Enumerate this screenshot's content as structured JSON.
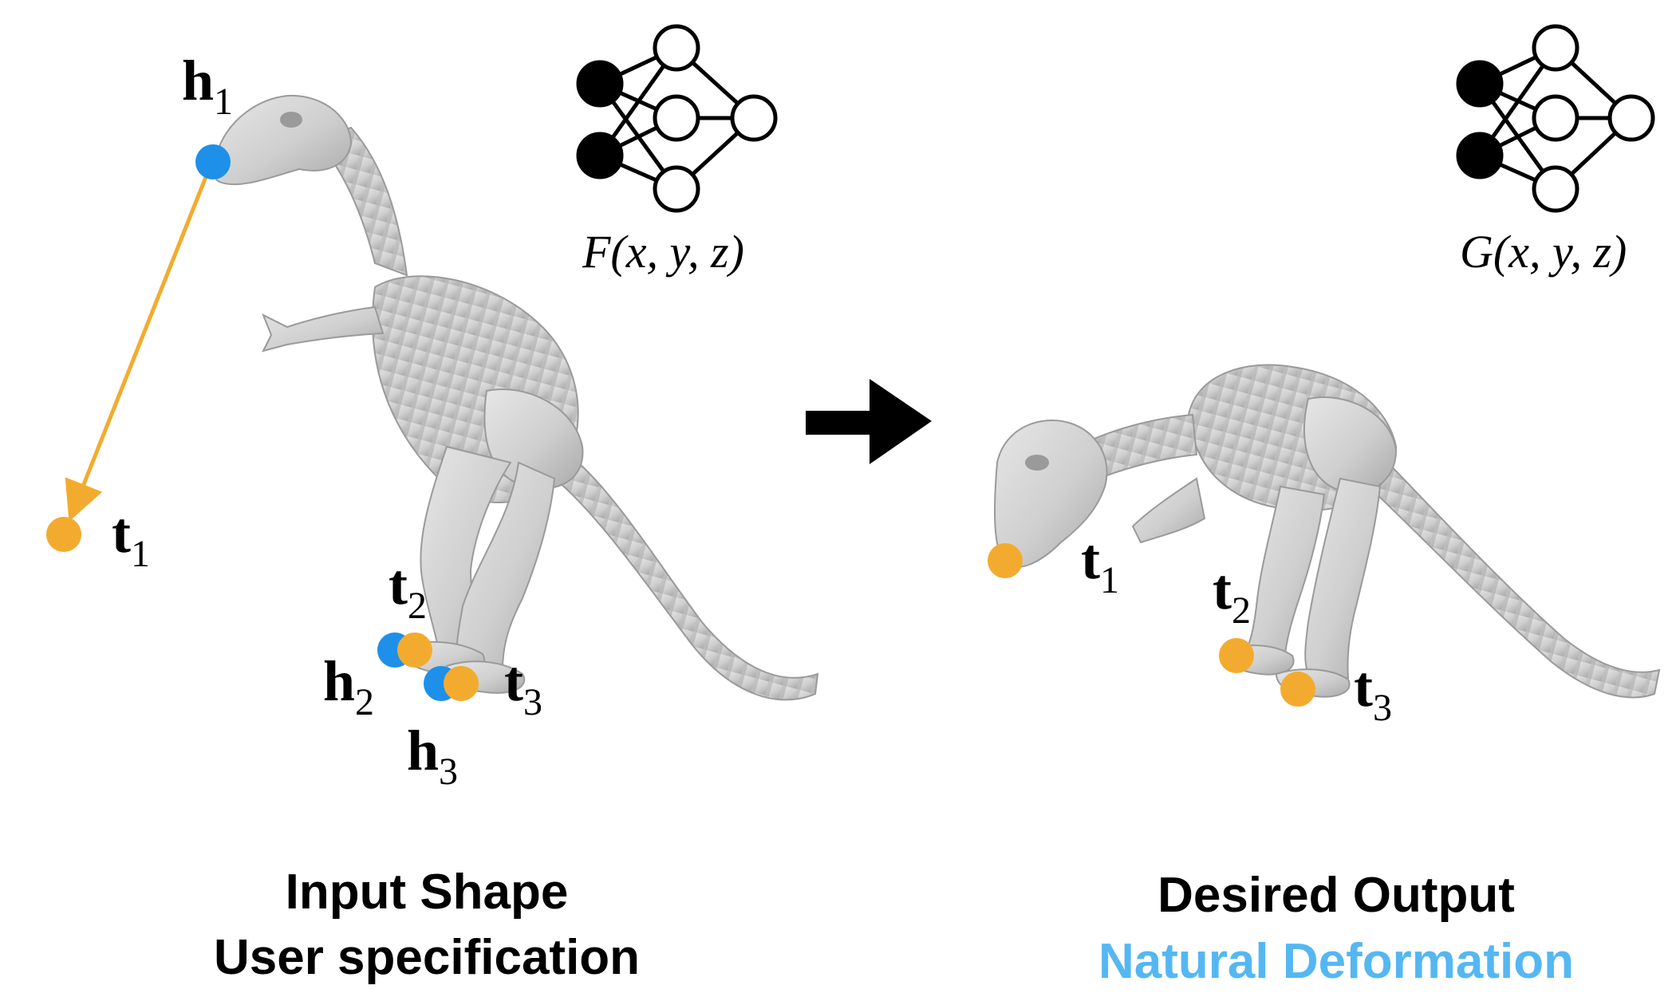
{
  "colors": {
    "handle": "#1e90ea",
    "target": "#f3ab2f",
    "arrow": "#f3ab2f",
    "highlight": "#55b7f2",
    "mesh": "#cfcfcf",
    "ink": "#000000"
  },
  "left_panel": {
    "caption_line1": "Input Shape",
    "caption_line2": "User specification",
    "network_label": "F(x, y, z)",
    "handles": [
      {
        "name": "h",
        "sub": "1"
      },
      {
        "name": "h",
        "sub": "2"
      },
      {
        "name": "h",
        "sub": "3"
      }
    ],
    "targets": [
      {
        "name": "t",
        "sub": "1"
      },
      {
        "name": "t",
        "sub": "2"
      },
      {
        "name": "t",
        "sub": "3"
      }
    ]
  },
  "right_panel": {
    "caption_line1": "Desired Output",
    "caption_line2": "Natural Deformation",
    "network_label": "G(x, y, z)",
    "targets": [
      {
        "name": "t",
        "sub": "1"
      },
      {
        "name": "t",
        "sub": "2"
      },
      {
        "name": "t",
        "sub": "3"
      }
    ]
  },
  "icons": {
    "network": "neural-network-icon",
    "transition": "right-arrow-icon",
    "shape": "dinosaur-skeleton-mesh"
  }
}
